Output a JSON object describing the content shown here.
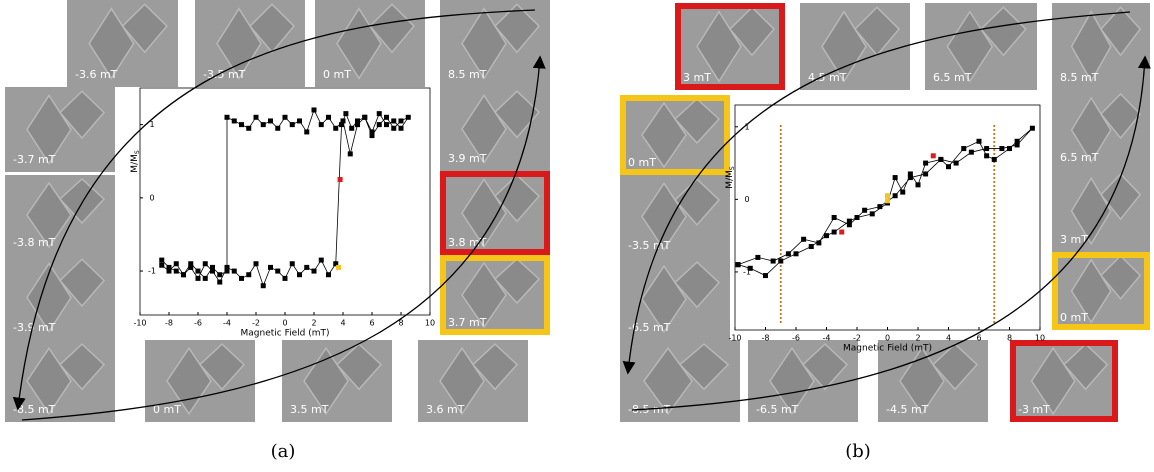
{
  "chart_data": [
    {
      "type": "line",
      "xlabel": "Magnetic Field (mT)",
      "ylabel": "M/M",
      "ylabel_subscript": "S",
      "xlim": [
        -10,
        10
      ],
      "xticks": [
        -10,
        -8,
        -6,
        -4,
        -2,
        0,
        2,
        4,
        6,
        8,
        10
      ],
      "ylim": [
        -1.6,
        1.5
      ],
      "yticks": [
        -1,
        0,
        1
      ],
      "series": [
        {
          "color": "#000000",
          "connected": true,
          "x": [
            -8.5,
            -8,
            -7.5,
            -7,
            -6.5,
            -6,
            -5.5,
            -5,
            -4.5,
            -4,
            -3.5,
            -3,
            -2.5,
            -2,
            -1.5,
            -1,
            -0.5,
            0,
            0.5,
            1,
            1.5,
            2,
            2.5,
            3,
            3.5,
            3.9,
            4.2,
            4.6,
            5,
            5.5,
            6,
            6.5,
            7,
            7.5,
            8,
            8.5,
            8,
            7.5,
            7,
            6.5,
            6,
            5.5,
            5,
            4.5,
            4,
            3.5,
            3,
            2.5,
            2,
            1.5,
            1,
            0.5,
            0,
            -0.5,
            -1,
            -1.5,
            -2,
            -2.5,
            -3,
            -3.5,
            -4,
            -4,
            -4.5,
            -5,
            -5.5,
            -6,
            -6.5,
            -7,
            -7.5,
            -8,
            -8.5
          ],
          "values": [
            -0.92,
            -1.0,
            -0.9,
            -1.05,
            -0.95,
            -1.1,
            -0.9,
            -1.0,
            -1.15,
            -0.95,
            -1.0,
            -1.1,
            -1.05,
            -0.9,
            -1.2,
            -0.95,
            -1.0,
            -1.1,
            -0.9,
            -1.05,
            -0.95,
            -1.0,
            -0.85,
            -1.05,
            -0.9,
            1.0,
            1.15,
            0.95,
            1.05,
            1.1,
            0.9,
            1.15,
            1.0,
            1.05,
            0.95,
            1.1,
            1.05,
            0.95,
            1.1,
            1.0,
            0.85,
            1.1,
            1.0,
            0.6,
            1.05,
            0.95,
            1.1,
            1.0,
            1.2,
            0.9,
            1.05,
            1.0,
            1.1,
            0.95,
            1.05,
            1.0,
            1.1,
            0.95,
            1.0,
            1.05,
            1.1,
            -1.0,
            -1.05,
            -0.95,
            -1.1,
            -1.0,
            -0.9,
            -1.05,
            -1.0,
            -0.95,
            -0.85
          ]
        },
        {
          "color": "#e0191a",
          "connected": false,
          "x": [
            3.8
          ],
          "values": [
            0.25
          ]
        },
        {
          "color": "#f5c518",
          "connected": false,
          "x": [
            3.7
          ],
          "values": [
            -0.95
          ]
        }
      ]
    },
    {
      "type": "line",
      "xlabel": "Magnetic Field (mT)",
      "ylabel": "M/M",
      "ylabel_subscript": "S",
      "xlim": [
        -10,
        10
      ],
      "xticks": [
        -10,
        -8,
        -6,
        -4,
        -2,
        0,
        2,
        4,
        6,
        8,
        10
      ],
      "ylim": [
        -1.8,
        1.3
      ],
      "yticks": [
        -1,
        0,
        1
      ],
      "vlines": {
        "values": [
          -7,
          7
        ],
        "color": "#c8741a"
      },
      "series": [
        {
          "color": "#000000",
          "connected": true,
          "x": [
            -9.8,
            -9,
            -8,
            -7,
            -6,
            -5,
            -4,
            -3.5,
            -2.5,
            -2,
            -1,
            0,
            0.5,
            1,
            1.5,
            2,
            2.5,
            3.5,
            4,
            5,
            6,
            6.5,
            7,
            8,
            8.5,
            9.5,
            8.5,
            7.5,
            6.5,
            5.5,
            4.5,
            3.5,
            2.5,
            1.5,
            0.5,
            -0.5,
            -1.5,
            -2.5,
            -3.5,
            -4.5,
            -5.5,
            -6.5,
            -7.5,
            -8.5,
            -9.8
          ],
          "values": [
            -0.9,
            -0.95,
            -1.05,
            -0.85,
            -0.75,
            -0.65,
            -0.5,
            -0.45,
            -0.3,
            -0.25,
            -0.2,
            -0.05,
            0.3,
            0.1,
            0.35,
            0.2,
            0.5,
            0.55,
            0.45,
            0.7,
            0.8,
            0.6,
            0.55,
            0.7,
            0.8,
            0.98,
            0.75,
            0.7,
            0.7,
            0.65,
            0.5,
            0.55,
            0.35,
            0.3,
            0.05,
            -0.1,
            -0.15,
            -0.35,
            -0.25,
            -0.6,
            -0.55,
            -0.75,
            -0.85,
            -0.8,
            -0.9
          ]
        },
        {
          "color": "#e0191a",
          "connected": false,
          "x": [
            -3,
            3
          ],
          "values": [
            -0.45,
            0.6
          ]
        },
        {
          "color": "#f5c518",
          "connected": false,
          "x": [
            0,
            0
          ],
          "values": [
            -0.02,
            0.05
          ]
        }
      ]
    }
  ],
  "panels": [
    {
      "caption": "(a)",
      "tiles": [
        "-3.6 mT",
        "-3.5 mT",
        "0 mT",
        "8.5 mT",
        "3.9 mT",
        "3.8 mT",
        "3.7 mT",
        "-3.7 mT",
        "-3.8 mT",
        "-3.9 mT",
        "-8.5 mT",
        "0 mT",
        "3.5 mT",
        "3.6 mT"
      ]
    },
    {
      "caption": "(b)",
      "tiles": [
        "3 mT",
        "4.5 mT",
        "6.5 mT",
        "8.5 mT",
        "6.5 mT",
        "3 mT",
        "0 mT",
        "0 mT",
        "-3.5 mT",
        "-6.5 mT",
        "-8.5 mT",
        "-6.5 mT",
        "-4.5 mT",
        "-3 mT"
      ]
    }
  ]
}
